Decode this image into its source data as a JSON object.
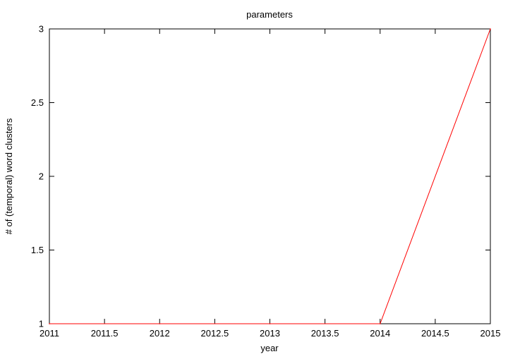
{
  "chart_data": {
    "type": "line",
    "title": "parameters",
    "xlabel": "year",
    "ylabel": "# of (temporal) word clusters",
    "xlim": [
      2011,
      2015
    ],
    "ylim": [
      1,
      3
    ],
    "x_ticks": [
      "2011",
      "2011.5",
      "2012",
      "2012.5",
      "2013",
      "2013.5",
      "2014",
      "2014.5",
      "2015"
    ],
    "y_ticks": [
      "1",
      "1.5",
      "2",
      "2.5",
      "3"
    ],
    "grid": false,
    "legend": "none",
    "series": [
      {
        "color": "#ff0000",
        "x": [
          2011,
          2012,
          2013,
          2014,
          2015
        ],
        "y": [
          1,
          1,
          1,
          1,
          3
        ]
      }
    ]
  }
}
